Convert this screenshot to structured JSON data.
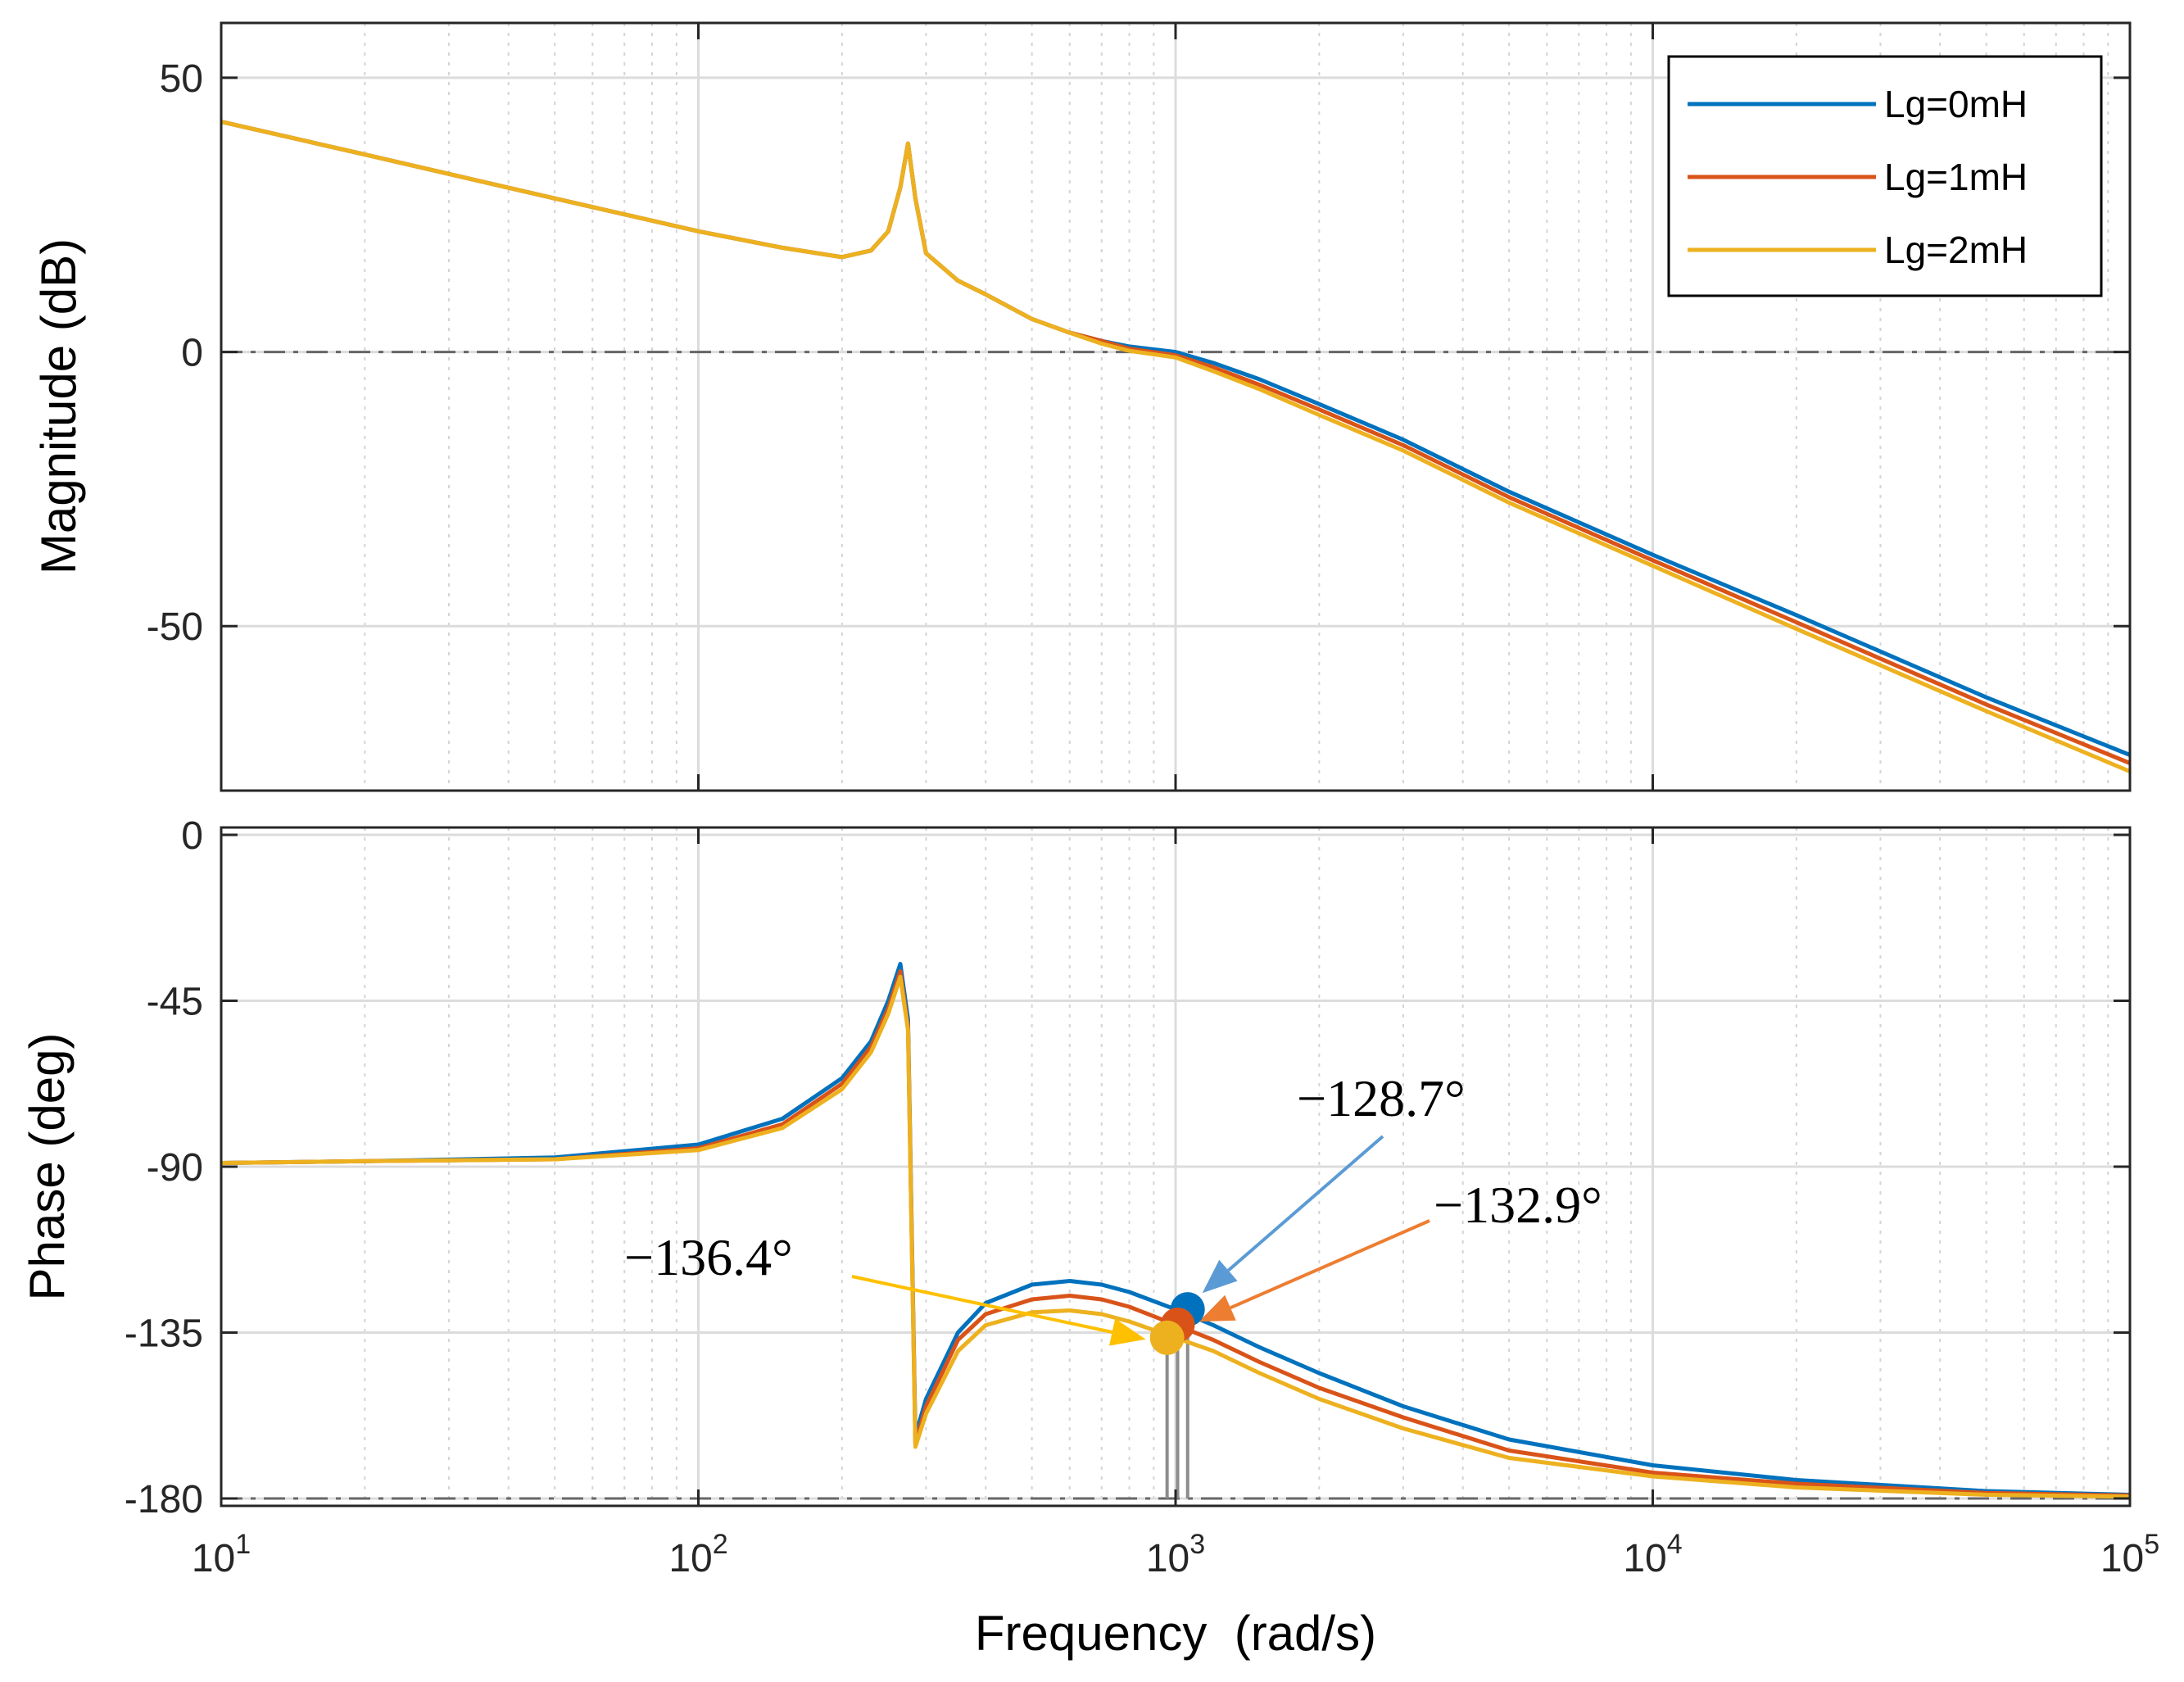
{
  "chart_data": {
    "type": "line",
    "title": "",
    "xlabel": "Frequency  (rad/s)",
    "xscale": "log",
    "xlim": [
      10,
      100000
    ],
    "x_ticks": [
      {
        "value": 10,
        "base": "10",
        "exp": "1"
      },
      {
        "value": 100,
        "base": "10",
        "exp": "2"
      },
      {
        "value": 1000,
        "base": "10",
        "exp": "3"
      },
      {
        "value": 10000,
        "base": "10",
        "exp": "4"
      },
      {
        "value": 100000,
        "base": "10",
        "exp": "5"
      }
    ],
    "legend": {
      "position": "top-right",
      "entries": [
        {
          "label": "Lg=0mH",
          "color": "#0072BD"
        },
        {
          "label": "Lg=1mH",
          "color": "#D95319"
        },
        {
          "label": "Lg=2mH",
          "color": "#EDB120"
        }
      ]
    },
    "x_samples": [
      10,
      20,
      50,
      100,
      150,
      200,
      230,
      250,
      265,
      275,
      285,
      300,
      350,
      400,
      500,
      600,
      700,
      800,
      1000,
      1200,
      1500,
      2000,
      3000,
      5000,
      10000,
      20000,
      50000,
      100000
    ],
    "magnitude": {
      "ylabel": "Magnitude (dB)",
      "ylim": [
        -80,
        60
      ],
      "y_ticks": [
        {
          "value": 50,
          "label": "50"
        },
        {
          "value": 0,
          "label": "0"
        },
        {
          "value": -50,
          "label": "-50"
        }
      ],
      "reference_line": 0,
      "series": [
        {
          "name": "Lg=0mH",
          "values": [
            42,
            36,
            28,
            22,
            19,
            17.3,
            18.5,
            22,
            30,
            38,
            28,
            18,
            13,
            10.5,
            6,
            3.5,
            2,
            1,
            0,
            -2,
            -5,
            -9.5,
            -16,
            -25.5,
            -37,
            -48,
            -63,
            -73.5
          ]
        },
        {
          "name": "Lg=1mH",
          "values": [
            42,
            36,
            28,
            22,
            19,
            17.3,
            18.5,
            22,
            30,
            38,
            28,
            18,
            13,
            10.5,
            6,
            3.5,
            2,
            0.6,
            -0.6,
            -2.8,
            -6,
            -10.5,
            -17,
            -26.5,
            -38,
            -49.3,
            -64.3,
            -75
          ]
        },
        {
          "name": "Lg=2mH",
          "values": [
            42,
            36,
            28,
            22,
            19,
            17.3,
            18.5,
            22,
            30,
            38,
            28,
            18,
            13,
            10.5,
            6,
            3.5,
            1.5,
            0.2,
            -1,
            -3.5,
            -6.8,
            -11.5,
            -18,
            -27.5,
            -39,
            -50.5,
            -65.5,
            -76.5
          ]
        }
      ]
    },
    "phase": {
      "ylabel": "Phase (deg)",
      "ylim": [
        -182,
        2
      ],
      "y_ticks": [
        {
          "value": 0,
          "label": "0"
        },
        {
          "value": -45,
          "label": "-45"
        },
        {
          "value": -90,
          "label": "-90"
        },
        {
          "value": -135,
          "label": "-135"
        },
        {
          "value": -180,
          "label": "-180"
        }
      ],
      "reference_line": -180,
      "series": [
        {
          "name": "Lg=0mH",
          "values": [
            -89,
            -88.5,
            -87.5,
            -84,
            -77,
            -66,
            -56,
            -45,
            -35,
            -50,
            -163,
            -153,
            -135,
            -127,
            -122,
            -121,
            -122,
            -124,
            -128.7,
            -133,
            -139,
            -146,
            -155,
            -164,
            -171,
            -175,
            -178,
            -179
          ]
        },
        {
          "name": "Lg=1mH",
          "values": [
            -89,
            -88.5,
            -88,
            -85,
            -78.5,
            -67.5,
            -57.5,
            -47,
            -37,
            -52,
            -165,
            -155,
            -137,
            -130,
            -126,
            -125,
            -126,
            -128,
            -132.9,
            -137,
            -143,
            -150,
            -158,
            -167,
            -173,
            -176,
            -178.5,
            -179.2
          ]
        },
        {
          "name": "Lg=2mH",
          "values": [
            -89,
            -88.5,
            -88,
            -85.5,
            -79.5,
            -69,
            -59,
            -48.5,
            -38.5,
            -53,
            -166,
            -157,
            -140,
            -133,
            -129.5,
            -129,
            -130,
            -132,
            -136.4,
            -140,
            -146,
            -153,
            -161,
            -169,
            -174,
            -177,
            -179,
            -179.5
          ]
        }
      ],
      "crossover_markers": [
        {
          "series": "Lg=0mH",
          "x": 1060,
          "y": -128.7,
          "color": "#0072BD"
        },
        {
          "series": "Lg=1mH",
          "x": 1010,
          "y": -132.9,
          "color": "#D95319"
        },
        {
          "series": "Lg=2mH",
          "x": 960,
          "y": -136.4,
          "color": "#EDB120"
        }
      ],
      "annotations": [
        {
          "text": "−128.7°",
          "series": "Lg=0mH",
          "x": 1060,
          "y": -128.7,
          "color": "#5B9BD5"
        },
        {
          "text": "−132.9°",
          "series": "Lg=1mH",
          "x": 1010,
          "y": -132.9,
          "color": "#ED7D31"
        },
        {
          "text": "−136.4°",
          "series": "Lg=2mH",
          "x": 960,
          "y": -136.4,
          "color": "#FFC000"
        }
      ]
    }
  }
}
